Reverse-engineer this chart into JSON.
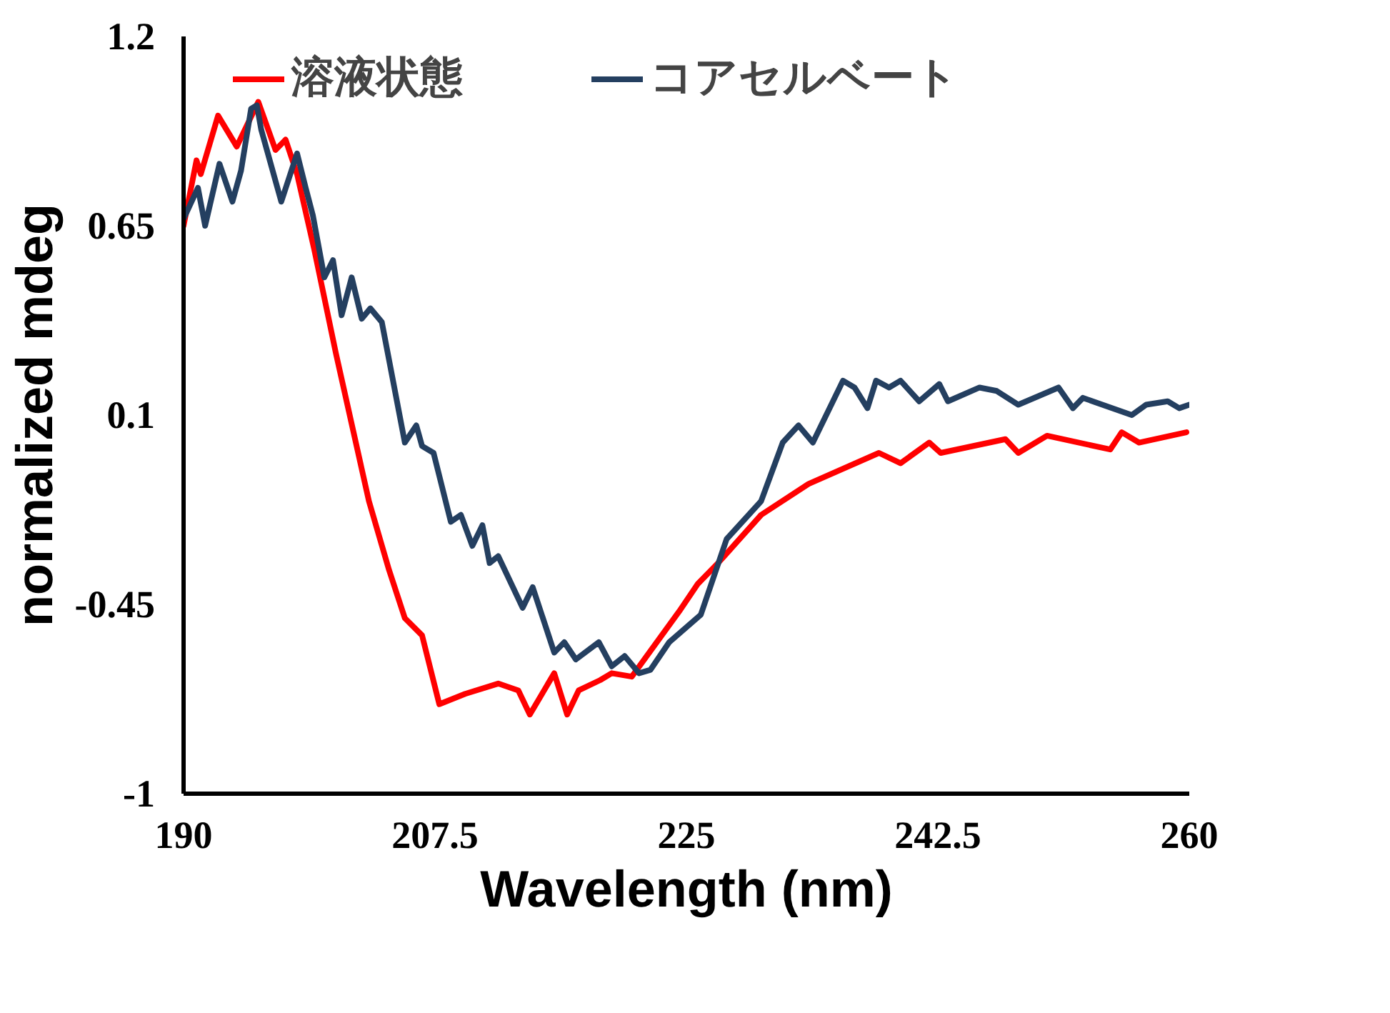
{
  "chart_data": {
    "type": "line",
    "xlabel": "Wavelength (nm)",
    "ylabel": "normalized mdeg",
    "xlim": [
      190,
      260
    ],
    "xticks": [
      190,
      207.5,
      225,
      242.5,
      260
    ],
    "ylim": [
      -1,
      1.2
    ],
    "yticks": [
      -1,
      -0.45,
      0.1,
      0.65,
      1.2
    ],
    "grid": false,
    "legend": "top",
    "marker": "none",
    "line_style": "solid",
    "series": [
      {
        "name": "溶液状態",
        "color": "#ff0000",
        "x": [
          190.0,
          190.9,
          191.2,
          192.4,
          193.7,
          195.2,
          196.4,
          197.1,
          197.9,
          199.1,
          200.6,
          202.9,
          204.3,
          205.4,
          206.6,
          207.8,
          209.6,
          211.9,
          213.3,
          214.1,
          215.8,
          216.7,
          217.5,
          219.0,
          219.8,
          221.2,
          224.5,
          225.8,
          227.2,
          230.2,
          233.5,
          238.4,
          239.9,
          241.9,
          242.7,
          247.2,
          248.1,
          250.1,
          254.5,
          255.3,
          256.5,
          259.8
        ],
        "values": [
          0.65,
          0.84,
          0.8,
          0.97,
          0.88,
          1.01,
          0.87,
          0.9,
          0.8,
          0.58,
          0.28,
          -0.15,
          -0.35,
          -0.49,
          -0.54,
          -0.74,
          -0.71,
          -0.68,
          -0.7,
          -0.77,
          -0.65,
          -0.77,
          -0.7,
          -0.67,
          -0.65,
          -0.66,
          -0.47,
          -0.39,
          -0.33,
          -0.19,
          -0.1,
          -0.01,
          -0.04,
          0.02,
          -0.01,
          0.03,
          -0.01,
          0.04,
          0.0,
          0.05,
          0.02,
          0.05
        ]
      },
      {
        "name": "コアセルベート",
        "color": "#243f60",
        "x": [
          190.0,
          191.0,
          191.5,
          192.5,
          193.4,
          194.0,
          194.7,
          195.1,
          195.4,
          196.8,
          197.9,
          198.5,
          199.0,
          199.8,
          200.4,
          201.0,
          201.7,
          202.4,
          203.0,
          203.8,
          205.4,
          206.2,
          206.6,
          207.4,
          208.6,
          209.3,
          210.1,
          210.8,
          211.3,
          211.9,
          213.6,
          214.3,
          215.8,
          216.5,
          217.3,
          218.9,
          219.8,
          220.7,
          221.7,
          222.5,
          223.8,
          226.0,
          227.8,
          230.2,
          231.7,
          232.8,
          233.8,
          235.9,
          236.7,
          237.6,
          238.2,
          239.1,
          239.9,
          241.2,
          242.6,
          243.2,
          245.4,
          246.6,
          248.1,
          250.9,
          251.9,
          252.6,
          256.0,
          257.0,
          258.5,
          259.3,
          260.0
        ],
        "values": [
          0.67,
          0.76,
          0.65,
          0.83,
          0.72,
          0.81,
          0.99,
          1.0,
          0.93,
          0.72,
          0.86,
          0.76,
          0.68,
          0.5,
          0.55,
          0.39,
          0.5,
          0.38,
          0.41,
          0.37,
          0.02,
          0.07,
          0.01,
          -0.01,
          -0.21,
          -0.19,
          -0.28,
          -0.22,
          -0.33,
          -0.31,
          -0.46,
          -0.4,
          -0.59,
          -0.56,
          -0.61,
          -0.56,
          -0.63,
          -0.6,
          -0.65,
          -0.64,
          -0.56,
          -0.48,
          -0.26,
          -0.15,
          0.02,
          0.07,
          0.02,
          0.2,
          0.18,
          0.12,
          0.2,
          0.18,
          0.2,
          0.14,
          0.19,
          0.14,
          0.18,
          0.17,
          0.13,
          0.18,
          0.12,
          0.15,
          0.1,
          0.13,
          0.14,
          0.12,
          0.13
        ]
      }
    ]
  }
}
